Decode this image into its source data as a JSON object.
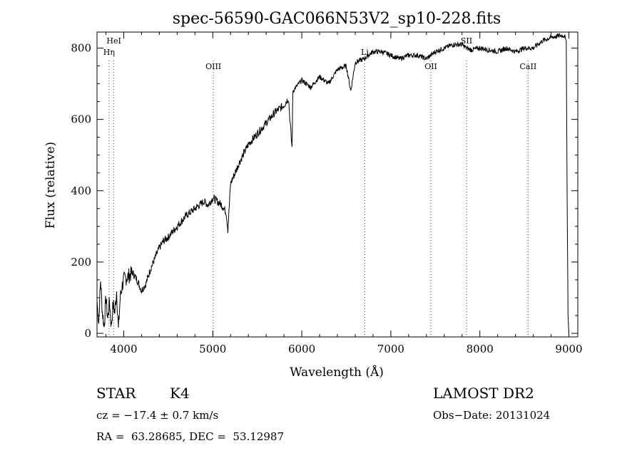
{
  "chart_data": {
    "type": "line",
    "title": "spec-56590-GAC066N53V2_sp10-228.fits",
    "xlabel": "Wavelength (Å)",
    "ylabel": "Flux (relative)",
    "xlim": [
      3700,
      9100
    ],
    "ylim": [
      -10,
      845
    ],
    "x_ticks": [
      4000,
      5000,
      6000,
      7000,
      8000,
      9000
    ],
    "y_ticks": [
      0,
      200,
      400,
      600,
      800
    ],
    "grid": false,
    "series": [
      {
        "x": [
          3700,
          3720,
          3740,
          3760,
          3780,
          3800,
          3820,
          3840,
          3860,
          3880,
          3900,
          3920,
          3940,
          3960,
          3980,
          4000,
          4050,
          4100,
          4150,
          4200,
          4250,
          4300,
          4350,
          4400,
          4450,
          4500,
          4600,
          4700,
          4800,
          4900,
          4950,
          5000,
          5050,
          5100,
          5150,
          5170,
          5200,
          5250,
          5300,
          5400,
          5500,
          5600,
          5700,
          5800,
          5850,
          5890,
          5900,
          6000,
          6100,
          6200,
          6300,
          6400,
          6500,
          6550,
          6600,
          6700,
          6800,
          6900,
          7000,
          7100,
          7200,
          7300,
          7400,
          7500,
          7600,
          7700,
          7800,
          7850,
          7900,
          8000,
          8100,
          8200,
          8300,
          8400,
          8500,
          8600,
          8700,
          8800,
          8900,
          8950,
          8970,
          8980,
          8990,
          9000
        ],
        "y": [
          90,
          30,
          150,
          60,
          20,
          100,
          40,
          90,
          20,
          80,
          60,
          120,
          10,
          100,
          130,
          150,
          160,
          170,
          150,
          120,
          140,
          180,
          210,
          240,
          260,
          270,
          300,
          330,
          350,
          370,
          360,
          380,
          370,
          360,
          340,
          290,
          420,
          450,
          480,
          530,
          560,
          590,
          620,
          640,
          660,
          520,
          680,
          710,
          690,
          720,
          700,
          740,
          750,
          680,
          760,
          770,
          790,
          790,
          780,
          770,
          780,
          780,
          770,
          790,
          800,
          810,
          810,
          800,
          795,
          800,
          795,
          790,
          800,
          790,
          800,
          800,
          820,
          830,
          835,
          835,
          820,
          400,
          50,
          0
        ]
      }
    ],
    "lines": [
      {
        "label": "HeI",
        "x": 3889
      },
      {
        "label": "Hη",
        "x": 3835
      },
      {
        "label": "OIII",
        "x": 5007
      },
      {
        "label": "Li",
        "x": 6708
      },
      {
        "label": "OII",
        "x": 7450
      },
      {
        "label": "SII",
        "x": 7850
      },
      {
        "label": "CaII",
        "x": 8542
      }
    ]
  },
  "info": {
    "object_class": "STAR",
    "subclass": "K4",
    "survey": "LAMOST DR2",
    "cz": "cz = −17.4 ± 0.7 km/s",
    "obs_date": "Obs−Date: 20131024",
    "coords": "RA =  63.28685, DEC =  53.12987"
  }
}
